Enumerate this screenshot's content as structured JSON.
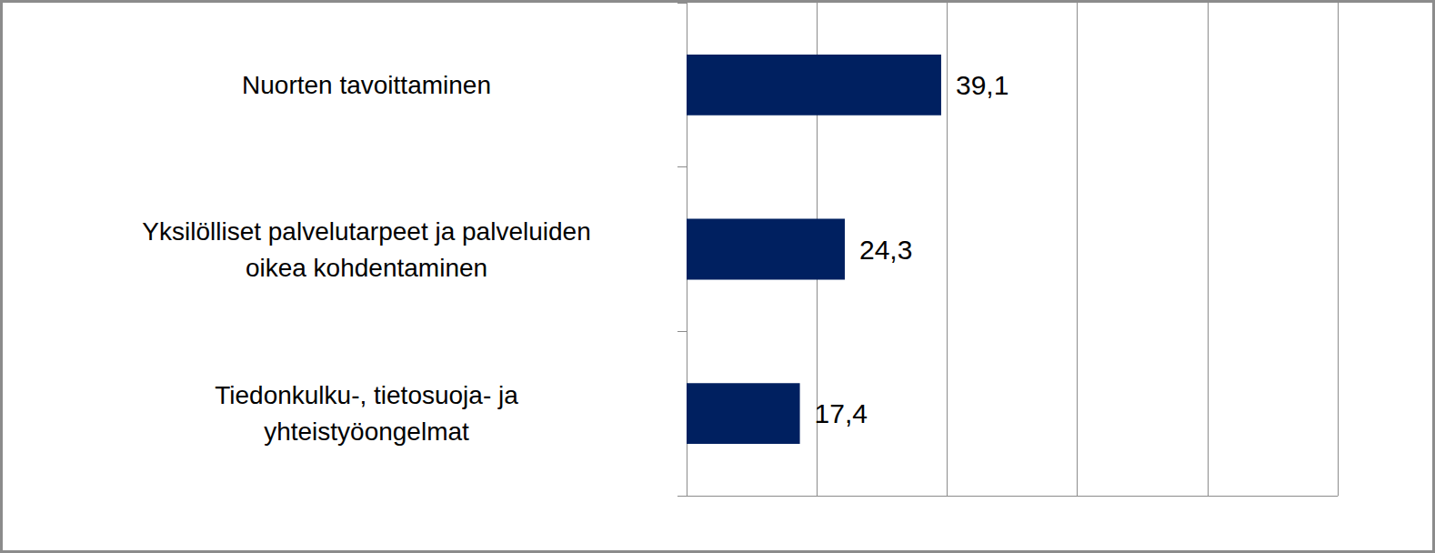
{
  "chart_data": {
    "type": "bar",
    "orientation": "horizontal",
    "categories": [
      "Nuorten tavoittaminen",
      "Yksilölliset palvelutarpeet ja palveluiden\noikea kohdentaminen",
      "Tiedonkulku-, tietosuoja- ja\nyhteistyöongelmat"
    ],
    "values": [
      39.1,
      24.3,
      17.4
    ],
    "value_labels": [
      "39,1",
      "24,3",
      "17,4"
    ],
    "color": "#002060",
    "xlim": [
      0,
      100
    ],
    "xticks": [
      0,
      20,
      40,
      60,
      80,
      100
    ],
    "grid": true,
    "data_labels": true,
    "tick_labels": "y"
  }
}
